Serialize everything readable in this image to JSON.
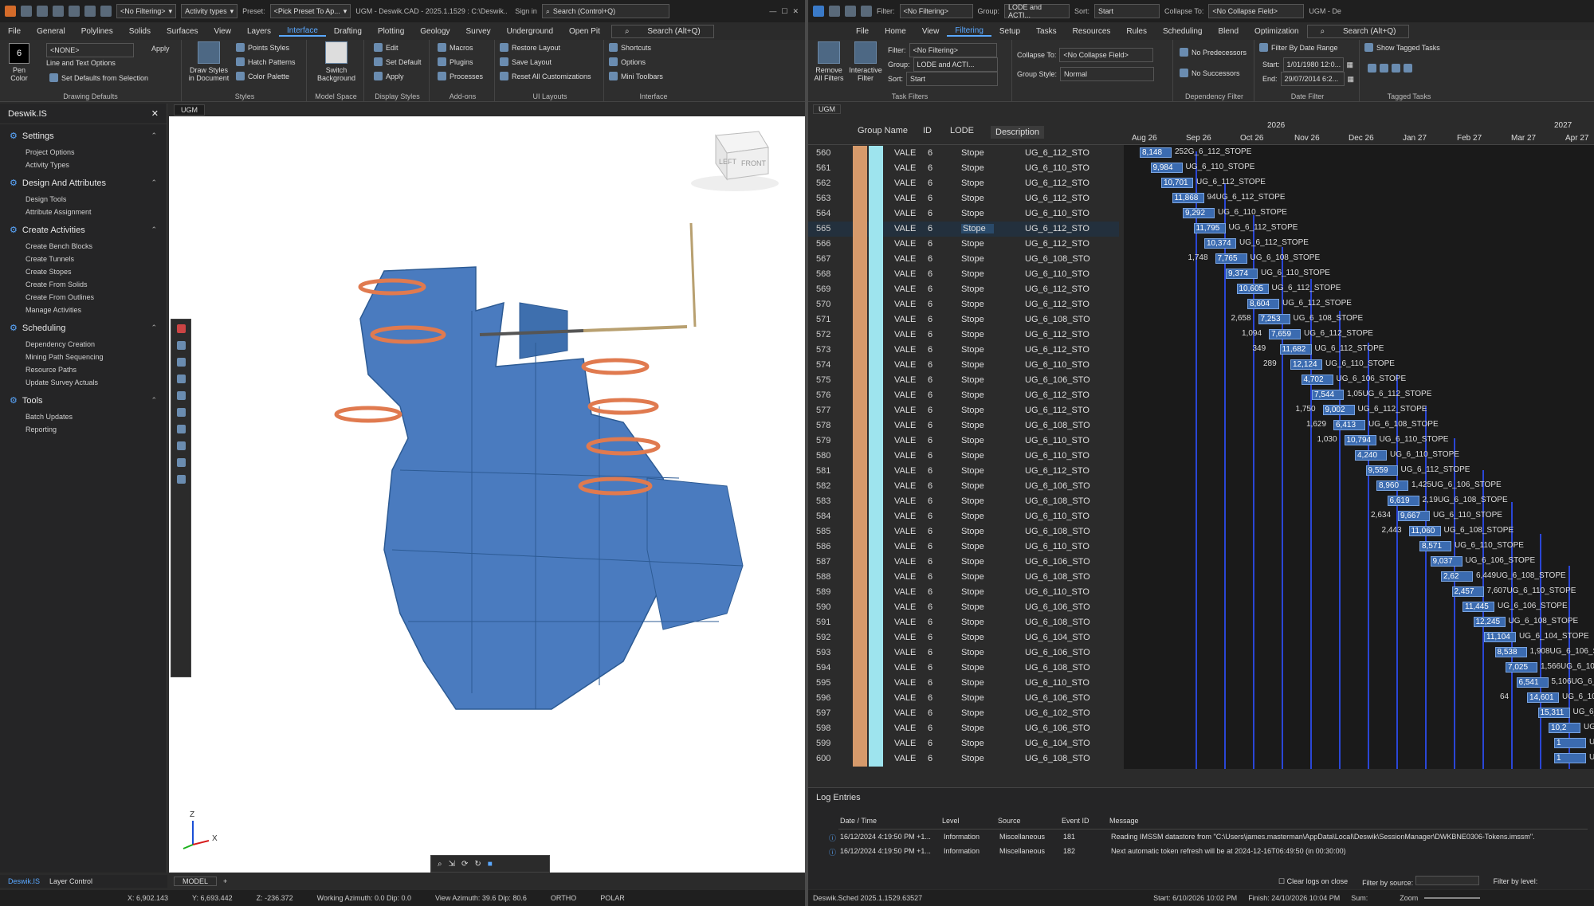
{
  "cad": {
    "title": "UGM - Deswik.CAD - 2025.1.1529 : C:\\Deswik...",
    "filter_dd": "<No Filtering>",
    "activity_dd": "Activity types",
    "preset_label": "Preset:",
    "preset_dd": "<Pick Preset To Ap...",
    "ugm": "UGM",
    "signin": "Sign in",
    "search": "Search (Control+Q)",
    "menu": [
      "File",
      "General",
      "Polylines",
      "Solids",
      "Surfaces",
      "View",
      "Layers",
      "Drafting",
      "Plotting",
      "Geology",
      "Survey",
      "Underground",
      "Open Pit"
    ],
    "menu_active": "Interface",
    "search2": "Search (Alt+Q)",
    "ribbon": {
      "pen_color": "Pen Color",
      "pen_num": "6",
      "none_dd": "<NONE>",
      "apply": "Apply",
      "line_text": "Line and Text Options",
      "set_defaults": "Set Defaults from Selection",
      "drawing_defaults": "Drawing Defaults",
      "draw_styles": "Draw Styles in Document",
      "points_styles": "Points Styles",
      "hatch_patterns": "Hatch Patterns",
      "color_palette": "Color Palette",
      "styles": "Styles",
      "switch_bg": "Switch Background",
      "model_space": "Model Space",
      "edit": "Edit",
      "set_default": "Set Default",
      "apply2": "Apply",
      "display_styles": "Display Styles",
      "macros": "Macros",
      "plugins": "Plugins",
      "processes": "Processes",
      "addons": "Add-ons",
      "restore_layout": "Restore Layout",
      "save_layout": "Save Layout",
      "reset_all": "Reset All Customizations",
      "ui_layouts": "UI Layouts",
      "shortcuts": "Shortcuts",
      "options": "Options",
      "mini_toolbars": "Mini Toolbars",
      "interface": "Interface"
    },
    "left": {
      "title": "Deswik.IS",
      "sections": [
        {
          "title": "Settings",
          "items": [
            "Project Options",
            "Activity Types"
          ]
        },
        {
          "title": "Design And Attributes",
          "items": [
            "Design Tools",
            "Attribute Assignment"
          ]
        },
        {
          "title": "Create Activities",
          "items": [
            "Create Bench Blocks",
            "Create Tunnels",
            "Create Stopes",
            "Create From Solids",
            "Create From Outlines",
            "Manage Activities"
          ]
        },
        {
          "title": "Scheduling",
          "items": [
            "Dependency Creation",
            "Mining Path Sequencing",
            "Resource Paths",
            "Update Survey Actuals"
          ]
        },
        {
          "title": "Tools",
          "items": [
            "Batch Updates",
            "Reporting"
          ]
        }
      ],
      "tab1": "Deswik.IS",
      "tab2": "Layer Control"
    },
    "viewport_tab": "UGM",
    "model_tab": "MODEL",
    "cube_left": "LEFT",
    "cube_front": "FRONT",
    "axis_z": "Z",
    "axis_x": "X",
    "status": {
      "x": "X: 6,902.143",
      "y": "Y: 6,693.442",
      "z": "Z: -236.372",
      "azimuth": "Working Azimuth: 0.0 Dip: 0.0",
      "view": "View Azimuth: 39.6 Dip: 80.6",
      "ortho": "ORTHO",
      "polar": "POLAR"
    }
  },
  "sched": {
    "title_ugm": "UGM - De",
    "filter_label": "Filter:",
    "filter_dd": "<No Filtering>",
    "group_label": "Group:",
    "group_dd": "LODE and ACTI...",
    "sort_label": "Sort:",
    "sort_dd": "Start",
    "collapse_label": "Collapse To:",
    "collapse_dd": "<No Collapse Field>",
    "menu": [
      "File",
      "Home",
      "View",
      "Filtering",
      "Setup",
      "Tasks",
      "Resources",
      "Rules",
      "Scheduling",
      "Blend",
      "Optimization"
    ],
    "menu_active": "Filtering",
    "search": "Search (Alt+Q)",
    "ribbon": {
      "remove_all": "Remove All Filters",
      "interactive": "Interactive Filter",
      "filter": "Filter:",
      "filter_v": "<No Filtering>",
      "group": "Group:",
      "group_v": "LODE and ACTI...",
      "sort": "Sort:",
      "sort_v": "Start",
      "task_filters": "Task Filters",
      "collapse": "Collapse To:",
      "collapse_v": "<No Collapse Field>",
      "group_style": "Group Style:",
      "group_style_v": "Normal",
      "no_pred": "No Predecessors",
      "no_succ": "No Successors",
      "dep_filter": "Dependency Filter",
      "by_date": "Filter By Date Range",
      "start": "Start:",
      "start_v": "1/01/1980 12:0...",
      "end": "End:",
      "end_v": "29/07/2014 6:2...",
      "date_filter": "Date Filter",
      "show_tagged": "Show Tagged Tasks",
      "tagged": "Tagged Tasks"
    },
    "tab": "UGM",
    "cols": [
      "Group Name",
      "ID",
      "LODE",
      "Description"
    ],
    "years": [
      "2026",
      "2027"
    ],
    "months": [
      "Aug 26",
      "Sep 26",
      "Oct 26",
      "Nov 26",
      "Dec 26",
      "Jan 27",
      "Feb 27",
      "Mar 27",
      "Apr 27"
    ],
    "rows": [
      {
        "n": "560",
        "id": "VALE",
        "lode": "6",
        "desc": "Stope",
        "name": "UG_6_112_STO"
      },
      {
        "n": "561",
        "id": "VALE",
        "lode": "6",
        "desc": "Stope",
        "name": "UG_6_110_STO"
      },
      {
        "n": "562",
        "id": "VALE",
        "lode": "6",
        "desc": "Stope",
        "name": "UG_6_112_STO"
      },
      {
        "n": "563",
        "id": "VALE",
        "lode": "6",
        "desc": "Stope",
        "name": "UG_6_112_STO"
      },
      {
        "n": "564",
        "id": "VALE",
        "lode": "6",
        "desc": "Stope",
        "name": "UG_6_110_STO"
      },
      {
        "n": "565",
        "id": "VALE",
        "lode": "6",
        "desc": "Stope",
        "name": "UG_6_112_STO"
      },
      {
        "n": "566",
        "id": "VALE",
        "lode": "6",
        "desc": "Stope",
        "name": "UG_6_112_STO"
      },
      {
        "n": "567",
        "id": "VALE",
        "lode": "6",
        "desc": "Stope",
        "name": "UG_6_108_STO"
      },
      {
        "n": "568",
        "id": "VALE",
        "lode": "6",
        "desc": "Stope",
        "name": "UG_6_110_STO"
      },
      {
        "n": "569",
        "id": "VALE",
        "lode": "6",
        "desc": "Stope",
        "name": "UG_6_112_STO"
      },
      {
        "n": "570",
        "id": "VALE",
        "lode": "6",
        "desc": "Stope",
        "name": "UG_6_112_STO"
      },
      {
        "n": "571",
        "id": "VALE",
        "lode": "6",
        "desc": "Stope",
        "name": "UG_6_108_STO"
      },
      {
        "n": "572",
        "id": "VALE",
        "lode": "6",
        "desc": "Stope",
        "name": "UG_6_112_STO"
      },
      {
        "n": "573",
        "id": "VALE",
        "lode": "6",
        "desc": "Stope",
        "name": "UG_6_112_STO"
      },
      {
        "n": "574",
        "id": "VALE",
        "lode": "6",
        "desc": "Stope",
        "name": "UG_6_110_STO"
      },
      {
        "n": "575",
        "id": "VALE",
        "lode": "6",
        "desc": "Stope",
        "name": "UG_6_106_STO"
      },
      {
        "n": "576",
        "id": "VALE",
        "lode": "6",
        "desc": "Stope",
        "name": "UG_6_112_STO"
      },
      {
        "n": "577",
        "id": "VALE",
        "lode": "6",
        "desc": "Stope",
        "name": "UG_6_112_STO"
      },
      {
        "n": "578",
        "id": "VALE",
        "lode": "6",
        "desc": "Stope",
        "name": "UG_6_108_STO"
      },
      {
        "n": "579",
        "id": "VALE",
        "lode": "6",
        "desc": "Stope",
        "name": "UG_6_110_STO"
      },
      {
        "n": "580",
        "id": "VALE",
        "lode": "6",
        "desc": "Stope",
        "name": "UG_6_110_STO"
      },
      {
        "n": "581",
        "id": "VALE",
        "lode": "6",
        "desc": "Stope",
        "name": "UG_6_112_STO"
      },
      {
        "n": "582",
        "id": "VALE",
        "lode": "6",
        "desc": "Stope",
        "name": "UG_6_106_STO"
      },
      {
        "n": "583",
        "id": "VALE",
        "lode": "6",
        "desc": "Stope",
        "name": "UG_6_108_STO"
      },
      {
        "n": "584",
        "id": "VALE",
        "lode": "6",
        "desc": "Stope",
        "name": "UG_6_110_STO"
      },
      {
        "n": "585",
        "id": "VALE",
        "lode": "6",
        "desc": "Stope",
        "name": "UG_6_108_STO"
      },
      {
        "n": "586",
        "id": "VALE",
        "lode": "6",
        "desc": "Stope",
        "name": "UG_6_110_STO"
      },
      {
        "n": "587",
        "id": "VALE",
        "lode": "6",
        "desc": "Stope",
        "name": "UG_6_106_STO"
      },
      {
        "n": "588",
        "id": "VALE",
        "lode": "6",
        "desc": "Stope",
        "name": "UG_6_108_STO"
      },
      {
        "n": "589",
        "id": "VALE",
        "lode": "6",
        "desc": "Stope",
        "name": "UG_6_110_STO"
      },
      {
        "n": "590",
        "id": "VALE",
        "lode": "6",
        "desc": "Stope",
        "name": "UG_6_106_STO"
      },
      {
        "n": "591",
        "id": "VALE",
        "lode": "6",
        "desc": "Stope",
        "name": "UG_6_108_STO"
      },
      {
        "n": "592",
        "id": "VALE",
        "lode": "6",
        "desc": "Stope",
        "name": "UG_6_104_STO"
      },
      {
        "n": "593",
        "id": "VALE",
        "lode": "6",
        "desc": "Stope",
        "name": "UG_6_106_STO"
      },
      {
        "n": "594",
        "id": "VALE",
        "lode": "6",
        "desc": "Stope",
        "name": "UG_6_108_STO"
      },
      {
        "n": "595",
        "id": "VALE",
        "lode": "6",
        "desc": "Stope",
        "name": "UG_6_110_STO"
      },
      {
        "n": "596",
        "id": "VALE",
        "lode": "6",
        "desc": "Stope",
        "name": "UG_6_106_STO"
      },
      {
        "n": "597",
        "id": "VALE",
        "lode": "6",
        "desc": "Stope",
        "name": "UG_6_102_STO"
      },
      {
        "n": "598",
        "id": "VALE",
        "lode": "6",
        "desc": "Stope",
        "name": "UG_6_106_STO"
      },
      {
        "n": "599",
        "id": "VALE",
        "lode": "6",
        "desc": "Stope",
        "name": "UG_6_104_STO"
      },
      {
        "n": "600",
        "id": "VALE",
        "lode": "6",
        "desc": "Stope",
        "name": "UG_6_108_STO"
      }
    ],
    "gantt": [
      {
        "bar": "8,148",
        "lbl": "252G_6_112_STOPE"
      },
      {
        "bar": "9,984",
        "lbl": "UG_6_110_STOPE"
      },
      {
        "bar": "10,701",
        "lbl": "UG_6_112_STOPE"
      },
      {
        "bar": "11,868",
        "lbl": "94UG_6_112_STOPE"
      },
      {
        "bar": "9,292",
        "lbl": "UG_6_110_STOPE"
      },
      {
        "bar": "11,795",
        "lbl": "UG_6_112_STOPE"
      },
      {
        "bar": "10,374",
        "lbl": "UG_6_112_STOPE"
      },
      {
        "bar": "7,765",
        "lbl": "UG_6_108_STOPE",
        "pre": "1,748"
      },
      {
        "bar": "9,374",
        "lbl": "UG_6_110_STOPE"
      },
      {
        "bar": "10,605",
        "lbl": "UG_6_112_STOPE"
      },
      {
        "bar": "8,604",
        "lbl": "UG_6_112_STOPE"
      },
      {
        "bar": "7,253",
        "lbl": "UG_6_108_STOPE",
        "pre": "2,658"
      },
      {
        "bar": "7,659",
        "lbl": "UG_6_112_STOPE",
        "pre": "1,094"
      },
      {
        "bar": "11,682",
        "lbl": "UG_6_112_STOPE",
        "pre": "349"
      },
      {
        "bar": "12,124",
        "lbl": "UG_6_110_STOPE",
        "pre": "289"
      },
      {
        "bar": "4,702",
        "lbl": "UG_6_106_STOPE"
      },
      {
        "bar": "7,544",
        "lbl": "1,05UG_6_112_STOPE"
      },
      {
        "bar": "9,002",
        "lbl": "UG_6_112_STOPE",
        "pre": "1,750"
      },
      {
        "bar": "6,413",
        "lbl": "UG_6_108_STOPE",
        "pre": "1,629"
      },
      {
        "bar": "10,794",
        "lbl": "UG_6_110_STOPE",
        "pre": "1,030"
      },
      {
        "bar": "4,240",
        "lbl": "UG_6_110_STOPE"
      },
      {
        "bar": "9,559",
        "lbl": "UG_6_112_STOPE"
      },
      {
        "bar": "8,960",
        "lbl": "1,425UG_6_106_STOPE"
      },
      {
        "bar": "6,619",
        "lbl": "2,19UG_6_108_STOPE"
      },
      {
        "bar": "9,667",
        "lbl": "UG_6_110_STOPE",
        "pre": "2,634"
      },
      {
        "bar": "11,060",
        "lbl": "UG_6_108_STOPE",
        "pre": "2,443"
      },
      {
        "bar": "8,571",
        "lbl": "UG_6_110_STOPE"
      },
      {
        "bar": "9,037",
        "lbl": "UG_6_106_STOPE"
      },
      {
        "bar": "2,62",
        "lbl": "6,449UG_6_108_STOPE"
      },
      {
        "bar": "2,457",
        "lbl": "7,607UG_6_110_STOPE"
      },
      {
        "bar": "11,445",
        "lbl": "UG_6_106_STOPE"
      },
      {
        "bar": "12,245",
        "lbl": "UG_6_108_STOPE"
      },
      {
        "bar": "11,104",
        "lbl": "UG_6_104_STOPE"
      },
      {
        "bar": "8,538",
        "lbl": "1,908UG_6_106_STOPE"
      },
      {
        "bar": "7,025",
        "lbl": "1,566UG_6_108_STOPE"
      },
      {
        "bar": "6,541",
        "lbl": "5,106UG_6_110_STOPE"
      },
      {
        "bar": "14,601",
        "lbl": "UG_6_106_STOPE",
        "pre": "64"
      },
      {
        "bar": "15,311",
        "lbl": "UG_6_102_STOPE"
      },
      {
        "bar": "10,2",
        "lbl": "UG_6_106_STOPE"
      },
      {
        "bar": "1",
        "lbl": "UG_6_104_STOPE"
      },
      {
        "bar": "1",
        "lbl": "UG_6_108_STOPE"
      }
    ],
    "log": {
      "title": "Log Entries",
      "cols": [
        "Date / Time",
        "Level",
        "Source",
        "Event ID",
        "Message"
      ],
      "entries": [
        {
          "dt": "16/12/2024 4:19:50 PM +1...",
          "lvl": "Information",
          "src": "Miscellaneous",
          "id": "181",
          "msg": "Reading IMSSM datastore from \"C:\\Users\\james.masterman\\AppData\\Local\\Deswik\\SessionManager\\DWKBNE0306-Tokens.imssm\"."
        },
        {
          "dt": "16/12/2024 4:19:50 PM +1...",
          "lvl": "Information",
          "src": "Miscellaneous",
          "id": "182",
          "msg": "Next automatic token refresh will be at 2024-12-16T06:49:50 (in 00:30:00)"
        }
      ],
      "clear": "Clear logs on close",
      "by_source": "Filter by source:",
      "by_level": "Filter by level:"
    },
    "status": {
      "version": "Deswik.Sched 2025.1.1529.63527",
      "start": "Start: 6/10/2026 10:02 PM",
      "finish": "Finish: 24/10/2026 10:04 PM",
      "sum": "Sum:",
      "zoom": "Zoom"
    }
  },
  "colors": {
    "accent": "#5aa8ff",
    "bar": "#3b6bb0",
    "stope": "#4a7bbf",
    "ramp": "#e07a4f"
  }
}
